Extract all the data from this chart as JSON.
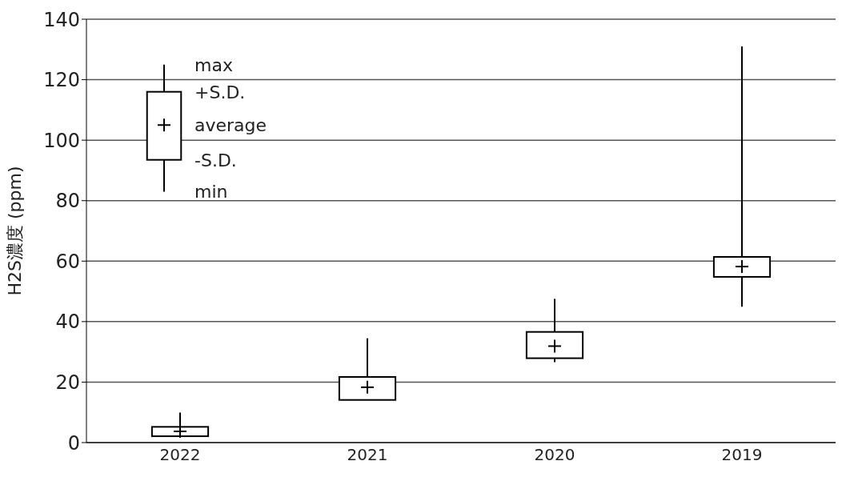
{
  "chart_data": {
    "type": "box",
    "ylabel": "H2S濃度 (ppm)",
    "categories": [
      "2022",
      "2021",
      "2020",
      "2019"
    ],
    "boxes": [
      {
        "low": 2,
        "q1": 2.1,
        "q3": 5.2,
        "high": 9.9,
        "mean": 3.7
      },
      {
        "low": 14,
        "q1": 14.1,
        "q3": 21.7,
        "high": 34.5,
        "mean": 18.3
      },
      {
        "low": 26.6,
        "q1": 27.9,
        "q3": 36.6,
        "high": 47.5,
        "mean": 31.9
      },
      {
        "low": 44.9,
        "q1": 54.8,
        "q3": 61.4,
        "high": 131,
        "mean": 58.2
      }
    ],
    "color": "#000000",
    "ylim": [
      0,
      140
    ],
    "yticks": [
      0,
      20,
      40,
      60,
      80,
      100,
      120,
      140
    ],
    "grid": "y",
    "annotations": [
      "max",
      "+S.D.",
      "average",
      "-S.D.",
      "min"
    ]
  }
}
